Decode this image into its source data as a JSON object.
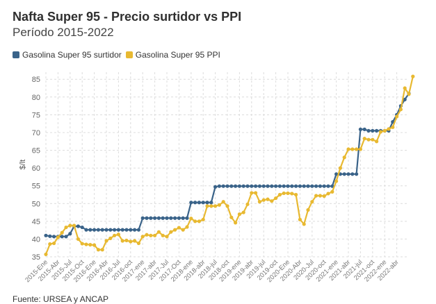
{
  "header": {
    "title": "Nafta Super 95 - Precio surtidor vs PPI",
    "subtitle": "Período 2015-2022"
  },
  "source": "Fuente: URSEA y ANCAP",
  "colors": {
    "surtidor": "#3a6389",
    "ppi": "#e8b931",
    "grid": "#dcdcdc"
  },
  "chart_data": {
    "type": "line",
    "ylabel": "$/lt",
    "ylim": [
      35,
      87
    ],
    "yticks": [
      35,
      40,
      45,
      50,
      55,
      60,
      65,
      70,
      75,
      80,
      85
    ],
    "x_tick_labels": [
      "2015-Ene",
      "2015-Abr",
      "2015-Jul",
      "2015-Oct",
      "2016-Ene",
      "2016-Abr",
      "2016-Jul",
      "2016-oct",
      "2017-ene",
      "2017-abr",
      "2017-Jul",
      "2017-Oct",
      "2018-ene",
      "2018-abr",
      "2018-jul",
      "2018-oct",
      "2019-ene",
      "2019-abr",
      "2019-jul",
      "2019-oct",
      "2020-Ene",
      "2020-Abr",
      "2020-Jul",
      "2020-oct",
      "2021-ene",
      "2021-abr",
      "2021-jul",
      "2021-oct",
      "2022-ene",
      "2022-abr"
    ],
    "legend_placement": "top-left",
    "grid": true,
    "series": [
      {
        "name": "Gasolina Super 95 surtidor",
        "color": "#3a6389",
        "values": [
          41,
          40.8,
          40.7,
          40.7,
          40.7,
          40.7,
          41.5,
          43.6,
          43.6,
          43.3,
          42.6,
          42.6,
          42.6,
          42.6,
          42.6,
          42.6,
          42.6,
          42.6,
          42.6,
          42.6,
          42.6,
          42.6,
          42.6,
          42.6,
          45.9,
          45.9,
          45.9,
          45.9,
          45.9,
          45.9,
          45.9,
          45.9,
          45.9,
          45.9,
          45.9,
          45.9,
          50.3,
          50.3,
          50.3,
          50.3,
          50.3,
          50.3,
          54.7,
          54.9,
          54.9,
          54.9,
          54.9,
          54.9,
          54.9,
          54.9,
          54.9,
          54.9,
          54.9,
          54.9,
          54.9,
          54.9,
          54.9,
          54.9,
          54.9,
          54.9,
          54.9,
          54.9,
          54.9,
          54.9,
          54.9,
          54.9,
          54.9,
          54.9,
          54.9,
          54.9,
          54.9,
          54.9,
          58.3,
          58.3,
          58.3,
          58.3,
          58.3,
          58.3,
          70.9,
          70.9,
          70.5,
          70.5,
          70.5,
          70.5,
          70.5,
          70.5,
          73,
          75,
          77.5,
          79.3,
          81
        ]
      },
      {
        "name": "Gasolina Super 95 PPI",
        "color": "#e8b931",
        "values": [
          35.7,
          38.6,
          38.8,
          40.5,
          41.8,
          43.3,
          43.8,
          43.8,
          40,
          38.7,
          38.5,
          38.4,
          38.3,
          37,
          37,
          39.5,
          40.2,
          41,
          41.3,
          39.5,
          39.6,
          39.3,
          39.5,
          38.8,
          40.7,
          41.2,
          41,
          41,
          42,
          41,
          40.7,
          42,
          42.6,
          43.2,
          42.6,
          43.4,
          45.8,
          45,
          45,
          45.5,
          49.3,
          49.3,
          49.3,
          49.6,
          50.5,
          49.3,
          46.1,
          44.6,
          47,
          47.5,
          49.8,
          53,
          53,
          50.5,
          51,
          51.2,
          50.7,
          51.5,
          52.5,
          52.9,
          52.9,
          52.8,
          52.5,
          45.5,
          44.2,
          48.2,
          50.5,
          52.2,
          52.2,
          52.1,
          52.8,
          53.3,
          56.3,
          60,
          63,
          65.3,
          65.3,
          65.3,
          65.3,
          68.3,
          68,
          68,
          67.5,
          70.2,
          70.5,
          71,
          71.5,
          74.5,
          76.5,
          82.5,
          80.8,
          85.8
        ]
      }
    ]
  }
}
